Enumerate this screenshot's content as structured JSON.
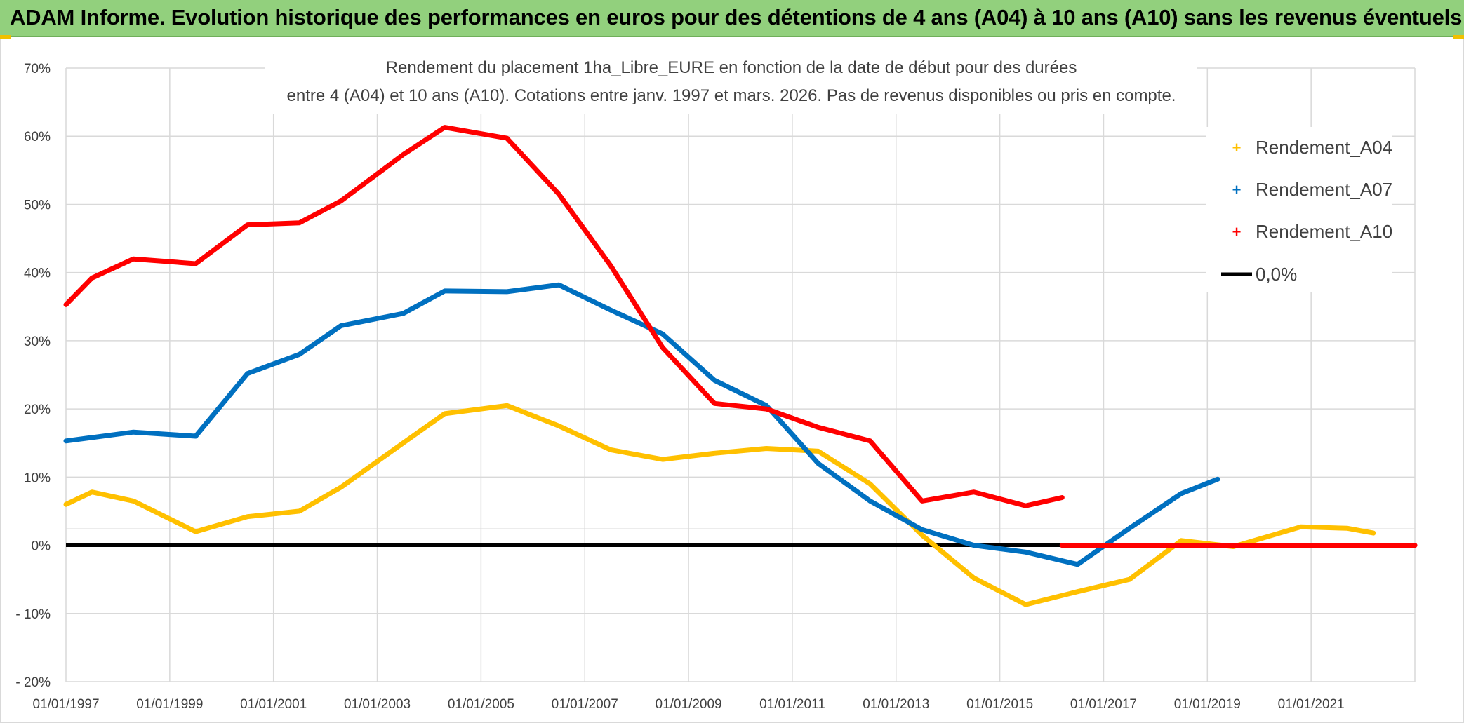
{
  "banner": {
    "title": "ADAM Informe. Evolution historique des performances en euros pour des détentions de 4 ans (A04) à 10 ans (A10) sans les revenus éventuels"
  },
  "colors": {
    "banner_bg": "#92d07d",
    "A04": "#ffc000",
    "A07": "#0070c0",
    "A10": "#ff0000",
    "zero": "#000000",
    "grid": "#d9d9d9"
  },
  "chart_data": {
    "type": "line",
    "title_lines": [
      "Rendement du placement 1ha_Libre_EURE en fonction de la date de début pour des durées",
      "entre 4 (A04) et 10 ans (A10). Cotations entre janv. 1997 et mars. 2026. Pas de revenus disponibles ou pris en compte."
    ],
    "x_range": [
      1997.0,
      2023.0
    ],
    "y_range": [
      -20,
      70
    ],
    "y_ticks": [
      {
        "value": 70,
        "label": "70%"
      },
      {
        "value": 60,
        "label": "60%"
      },
      {
        "value": 50,
        "label": "50%"
      },
      {
        "value": 40,
        "label": "40%"
      },
      {
        "value": 30,
        "label": "30%"
      },
      {
        "value": 20,
        "label": "20%"
      },
      {
        "value": 10,
        "label": "10%"
      },
      {
        "value": 0,
        "label": "0%"
      },
      {
        "value": -10,
        "label": "- 10%"
      },
      {
        "value": -20,
        "label": "- 20%"
      }
    ],
    "x_ticks": [
      {
        "value": 1997,
        "label": "01/01/1997"
      },
      {
        "value": 1999,
        "label": "01/01/1999"
      },
      {
        "value": 2001,
        "label": "01/01/2001"
      },
      {
        "value": 2003,
        "label": "01/01/2003"
      },
      {
        "value": 2005,
        "label": "01/01/2005"
      },
      {
        "value": 2007,
        "label": "01/01/2007"
      },
      {
        "value": 2009,
        "label": "01/01/2009"
      },
      {
        "value": 2011,
        "label": "01/01/2011"
      },
      {
        "value": 2013,
        "label": "01/01/2013"
      },
      {
        "value": 2015,
        "label": "01/01/2015"
      },
      {
        "value": 2017,
        "label": "01/01/2017"
      },
      {
        "value": 2019,
        "label": "01/01/2019"
      },
      {
        "value": 2021,
        "label": "01/01/2021"
      }
    ],
    "series": [
      {
        "name": "Rendement_A04",
        "color": "#ffc000",
        "points": [
          [
            1997.0,
            6.0
          ],
          [
            1997.5,
            7.8
          ],
          [
            1998.3,
            6.5
          ],
          [
            1999.5,
            2.0
          ],
          [
            2000.5,
            4.2
          ],
          [
            2001.5,
            5.0
          ],
          [
            2002.3,
            8.5
          ],
          [
            2003.5,
            15.0
          ],
          [
            2004.3,
            19.3
          ],
          [
            2005.5,
            20.5
          ],
          [
            2006.5,
            17.5
          ],
          [
            2007.5,
            14.0
          ],
          [
            2008.5,
            12.6
          ],
          [
            2009.5,
            13.5
          ],
          [
            2010.5,
            14.2
          ],
          [
            2011.5,
            13.8
          ],
          [
            2012.5,
            9.0
          ],
          [
            2013.5,
            1.5
          ],
          [
            2014.5,
            -4.8
          ],
          [
            2015.5,
            -8.7
          ],
          [
            2016.5,
            -6.8
          ],
          [
            2017.5,
            -5.0
          ],
          [
            2018.5,
            0.7
          ],
          [
            2019.5,
            -0.2
          ],
          [
            2020.8,
            2.7
          ],
          [
            2021.7,
            2.5
          ],
          [
            2022.2,
            1.8
          ]
        ]
      },
      {
        "name": "Rendement_A07",
        "color": "#0070c0",
        "points": [
          [
            1997.0,
            15.3
          ],
          [
            1998.3,
            16.6
          ],
          [
            1999.5,
            16.0
          ],
          [
            2000.5,
            25.2
          ],
          [
            2001.5,
            28.0
          ],
          [
            2002.3,
            32.2
          ],
          [
            2003.5,
            34.0
          ],
          [
            2004.3,
            37.3
          ],
          [
            2005.5,
            37.2
          ],
          [
            2006.5,
            38.2
          ],
          [
            2007.5,
            34.5
          ],
          [
            2008.5,
            31.0
          ],
          [
            2009.5,
            24.2
          ],
          [
            2010.5,
            20.5
          ],
          [
            2011.5,
            12.0
          ],
          [
            2012.5,
            6.5
          ],
          [
            2013.5,
            2.3
          ],
          [
            2014.5,
            0.0
          ],
          [
            2015.5,
            -1.0
          ],
          [
            2016.5,
            -2.8
          ],
          [
            2017.5,
            2.5
          ],
          [
            2018.5,
            7.6
          ],
          [
            2019.2,
            9.7
          ]
        ]
      },
      {
        "name": "Rendement_A10",
        "color": "#ff0000",
        "points": [
          [
            1997.0,
            35.3
          ],
          [
            1997.5,
            39.2
          ],
          [
            1998.3,
            42.0
          ],
          [
            1999.5,
            41.3
          ],
          [
            2000.5,
            47.0
          ],
          [
            2001.5,
            47.3
          ],
          [
            2002.3,
            50.5
          ],
          [
            2003.5,
            57.3
          ],
          [
            2004.3,
            61.3
          ],
          [
            2005.5,
            59.7
          ],
          [
            2006.5,
            51.5
          ],
          [
            2007.5,
            41.0
          ],
          [
            2008.5,
            29.0
          ],
          [
            2009.5,
            20.8
          ],
          [
            2010.5,
            20.0
          ],
          [
            2011.5,
            17.3
          ],
          [
            2012.5,
            15.3
          ],
          [
            2013.5,
            6.5
          ],
          [
            2014.5,
            7.8
          ],
          [
            2015.5,
            5.8
          ],
          [
            2016.2,
            7.0
          ]
        ]
      },
      {
        "name": "Rendement_A10 (0 segment)",
        "color": "#ff0000",
        "points": [
          [
            2016.2,
            0.0
          ],
          [
            2023.0,
            0.0
          ]
        ]
      }
    ],
    "reference_line": {
      "name": "0,0%",
      "value": 0,
      "color": "#000000"
    },
    "legend": {
      "position": "top-right",
      "entries": [
        {
          "label": "Rendement_A04",
          "color": "#ffc000",
          "kind": "marker"
        },
        {
          "label": "Rendement_A07",
          "color": "#0070c0",
          "kind": "marker"
        },
        {
          "label": "Rendement_A10",
          "color": "#ff0000",
          "kind": "marker"
        },
        {
          "label": "0,0%",
          "color": "#000000",
          "kind": "line"
        }
      ]
    }
  }
}
